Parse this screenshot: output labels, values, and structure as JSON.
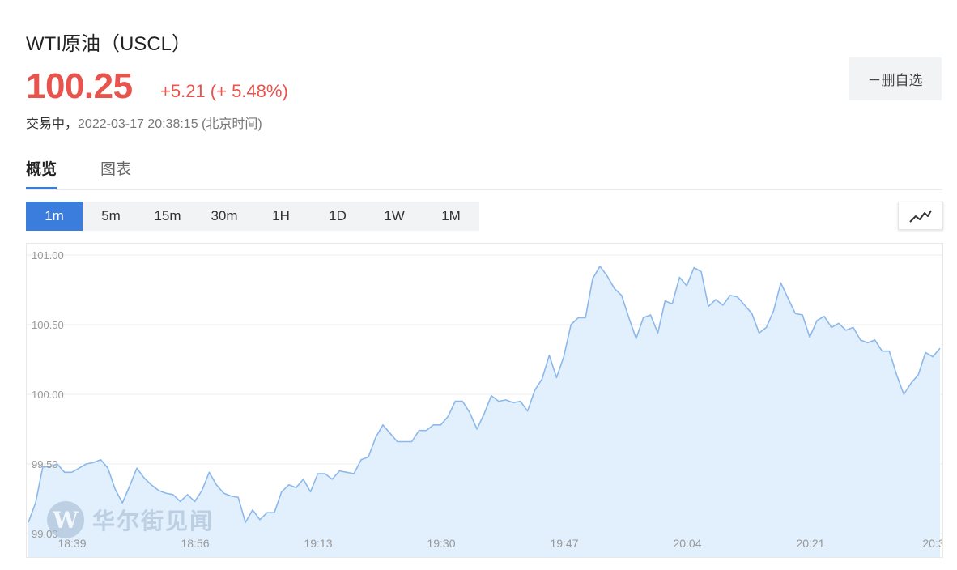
{
  "header": {
    "title": "WTI原油（USCL）",
    "price": "100.25",
    "change": "+5.21 (+ 5.48%)",
    "status": "交易中，",
    "timestamp": "2022-03-17 20:38:15 (北京时间)",
    "watch_button": "－删自选"
  },
  "tabs": [
    {
      "label": "概览",
      "active": true
    },
    {
      "label": "图表",
      "active": false
    }
  ],
  "intervals": [
    "1m",
    "5m",
    "15m",
    "30m",
    "1H",
    "1D",
    "1W",
    "1M"
  ],
  "selected_interval": "1m",
  "chart_type_icon": "line-chart-icon",
  "watermark": {
    "logo": "W",
    "text": "华尔街见闻"
  },
  "colors": {
    "price_up": "#e8544d",
    "accent": "#3b7ddd",
    "line": "#8cb8ea",
    "area": "#e2effc"
  },
  "chart_data": {
    "type": "area",
    "xlabel": "",
    "ylabel": "",
    "y_ticks": [
      "101.00",
      "100.50",
      "100.00",
      "99.50",
      "99.00"
    ],
    "x_ticks": [
      "18:39",
      "18:56",
      "19:13",
      "19:30",
      "19:47",
      "20:04",
      "20:21",
      "20:3"
    ],
    "ylim": [
      99.0,
      101.0
    ],
    "grid": true,
    "values": [
      99.08,
      99.22,
      99.48,
      99.48,
      99.5,
      99.44,
      99.44,
      99.47,
      99.5,
      99.51,
      99.53,
      99.47,
      99.32,
      99.22,
      99.34,
      99.47,
      99.4,
      99.35,
      99.31,
      99.29,
      99.28,
      99.23,
      99.28,
      99.23,
      99.31,
      99.44,
      99.35,
      99.29,
      99.27,
      99.26,
      99.08,
      99.17,
      99.1,
      99.15,
      99.15,
      99.3,
      99.35,
      99.33,
      99.39,
      99.3,
      99.43,
      99.43,
      99.39,
      99.45,
      99.44,
      99.43,
      99.53,
      99.55,
      99.69,
      99.78,
      99.72,
      99.66,
      99.66,
      99.66,
      99.74,
      99.74,
      99.78,
      99.78,
      99.84,
      99.95,
      99.95,
      99.87,
      99.75,
      99.86,
      99.99,
      99.95,
      99.96,
      99.94,
      99.95,
      99.88,
      100.03,
      100.11,
      100.28,
      100.12,
      100.27,
      100.5,
      100.55,
      100.55,
      100.83,
      100.92,
      100.85,
      100.76,
      100.71,
      100.55,
      100.4,
      100.55,
      100.57,
      100.44,
      100.67,
      100.65,
      100.84,
      100.78,
      100.91,
      100.88,
      100.63,
      100.68,
      100.64,
      100.71,
      100.7,
      100.64,
      100.58,
      100.44,
      100.48,
      100.6,
      100.8,
      100.69,
      100.58,
      100.57,
      100.41,
      100.53,
      100.56,
      100.48,
      100.51,
      100.46,
      100.48,
      100.39,
      100.37,
      100.39,
      100.31,
      100.31,
      100.14,
      100.0,
      100.08,
      100.14,
      100.3,
      100.27,
      100.33
    ]
  }
}
